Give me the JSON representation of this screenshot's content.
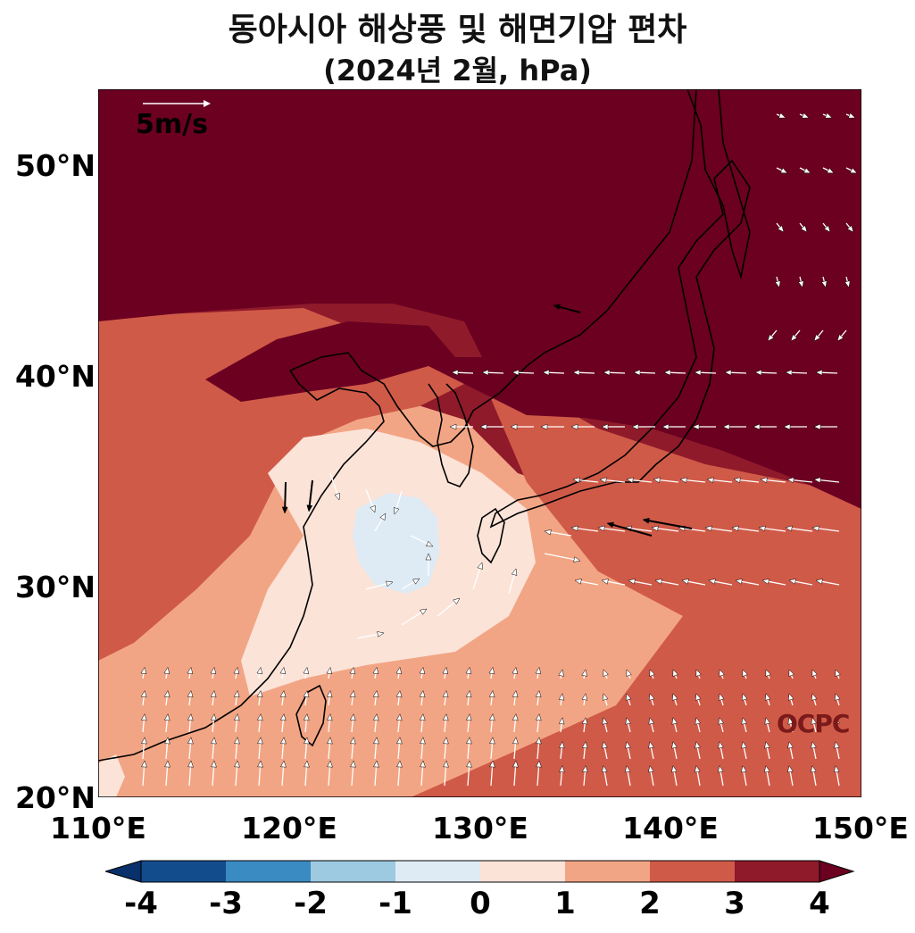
{
  "title": "동아시아 해상풍 및 해면기압 편차",
  "subtitle": "(2024년 2월, hPa)",
  "y_ticks": [
    "50°N",
    "40°N",
    "30°N",
    "20°N"
  ],
  "x_ticks": [
    "110°E",
    "120°E",
    "130°E",
    "140°E",
    "150°E"
  ],
  "colorbar_ticks": [
    "-4",
    "-3",
    "-2",
    "-1",
    "0",
    "1",
    "2",
    "3",
    "4"
  ],
  "colorbar_colors": [
    "#08306b",
    "#134c8c",
    "#3a8bc2",
    "#9dc9e1",
    "#deebf5",
    "#fbe3d8",
    "#f2a584",
    "#d05a48",
    "#8f1a2a",
    "#6b0021"
  ],
  "reference_vector_label": "5m/s",
  "credit": "OCPC",
  "map": {
    "lon_range": [
      110,
      150
    ],
    "lat_range": [
      20,
      53.5
    ],
    "anomaly_levels": [
      -1,
      0,
      1,
      2,
      3,
      4
    ],
    "region_values": {
      "north": 4,
      "band_3_4": 3.5,
      "band_2_3": 2.5,
      "band_1_2": 1.5,
      "center": 0.5,
      "negative_core": -0.5
    }
  }
}
